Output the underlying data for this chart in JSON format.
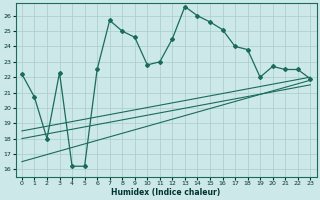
{
  "xlabel": "Humidex (Indice chaleur)",
  "bg_color": "#cce8e8",
  "grid_color": "#aacccc",
  "line_color": "#1a6b5a",
  "xlim": [
    -0.5,
    23.5
  ],
  "ylim": [
    15.5,
    26.8
  ],
  "xticks": [
    0,
    1,
    2,
    3,
    4,
    5,
    6,
    7,
    8,
    9,
    10,
    11,
    12,
    13,
    14,
    15,
    16,
    17,
    18,
    19,
    20,
    21,
    22,
    23
  ],
  "yticks": [
    16,
    17,
    18,
    19,
    20,
    21,
    22,
    23,
    24,
    25,
    26
  ],
  "main_line_x": [
    0,
    1,
    2,
    3,
    4,
    5,
    6,
    7,
    8,
    9,
    10,
    11,
    12,
    13,
    14,
    15,
    16,
    17,
    18,
    19,
    20,
    21,
    22,
    23
  ],
  "main_line_y": [
    22.2,
    20.7,
    18.0,
    22.3,
    16.2,
    16.2,
    22.5,
    25.7,
    25.0,
    24.6,
    22.8,
    23.0,
    24.5,
    26.6,
    26.0,
    25.6,
    25.1,
    24.0,
    23.8,
    22.0,
    22.7,
    22.5,
    22.5,
    21.9
  ],
  "reg_lines": [
    {
      "x": [
        0,
        23
      ],
      "y": [
        18.5,
        22.0
      ]
    },
    {
      "x": [
        0,
        23
      ],
      "y": [
        18.0,
        21.5
      ]
    },
    {
      "x": [
        0,
        23
      ],
      "y": [
        16.5,
        21.8
      ]
    }
  ]
}
